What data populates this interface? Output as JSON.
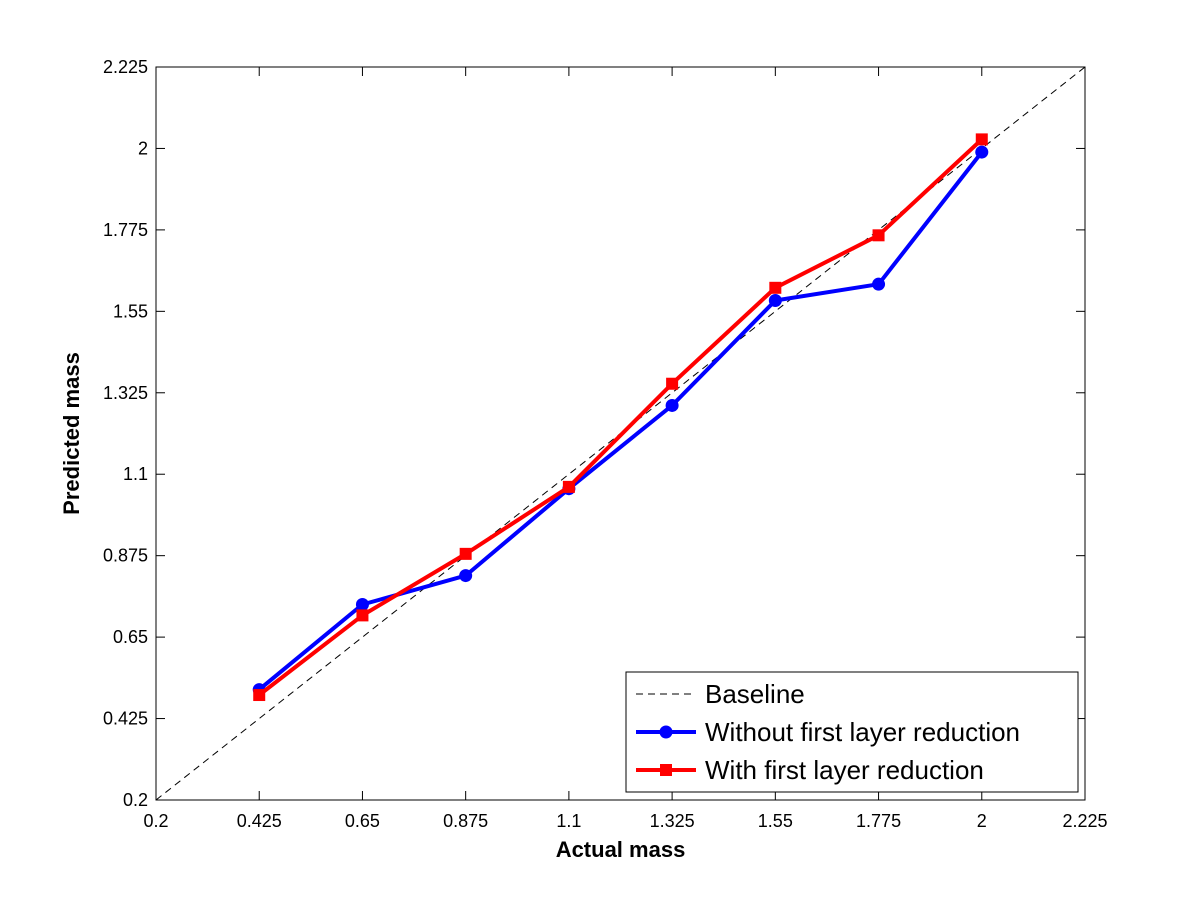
{
  "chart_data": {
    "type": "line",
    "title": "",
    "xlabel": "Actual mass",
    "ylabel": "Predicted mass",
    "xlim": [
      0.2,
      2.225
    ],
    "ylim": [
      0.2,
      2.225
    ],
    "xticks": [
      "0.2",
      "0.425",
      "0.65",
      "0.875",
      "1.1",
      "1.325",
      "1.55",
      "1.775",
      "2",
      "2.225"
    ],
    "yticks": [
      "0.2",
      "0.425",
      "0.65",
      "0.875",
      "1.1",
      "1.325",
      "1.55",
      "1.775",
      "2",
      "2.225"
    ],
    "grid": false,
    "legend_position": "bottom-right",
    "series": [
      {
        "name": "Baseline",
        "style": "dashed",
        "color": "#000000",
        "x": [
          0.2,
          2.225
        ],
        "y": [
          0.2,
          2.225
        ]
      },
      {
        "name": "Without first layer reduction",
        "style": "solid",
        "marker": "circle",
        "color": "#0000ff",
        "x": [
          0.425,
          0.65,
          0.875,
          1.1,
          1.325,
          1.55,
          1.775,
          2.0
        ],
        "y": [
          0.505,
          0.74,
          0.82,
          1.06,
          1.29,
          1.58,
          1.625,
          1.99
        ]
      },
      {
        "name": "With first layer reduction",
        "style": "solid",
        "marker": "square",
        "color": "#ff0000",
        "x": [
          0.425,
          0.65,
          0.875,
          1.1,
          1.325,
          1.55,
          1.775,
          2.0
        ],
        "y": [
          0.49,
          0.71,
          0.88,
          1.065,
          1.35,
          1.615,
          1.76,
          2.025
        ]
      }
    ]
  }
}
